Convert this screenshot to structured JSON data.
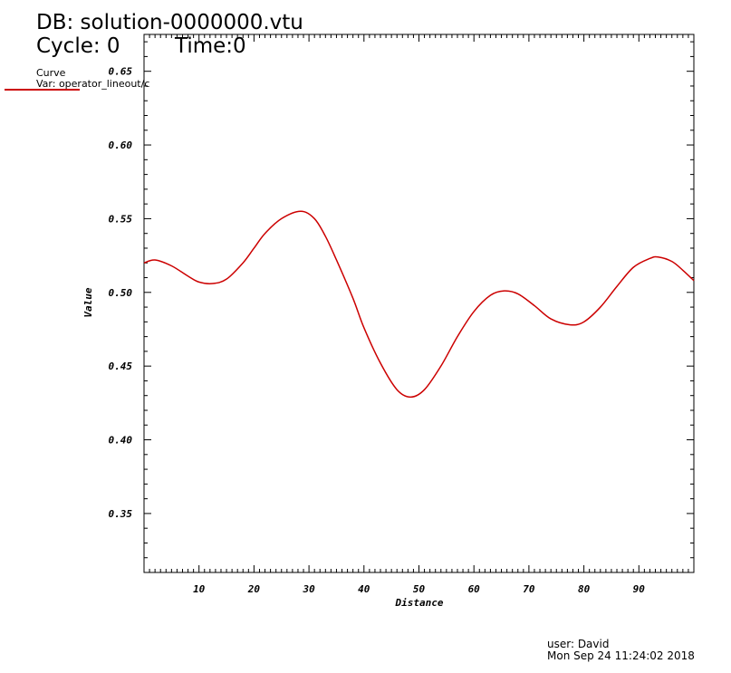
{
  "header": {
    "db_label": "DB: solution-0000000.vtu",
    "cycle_label": "Cycle: 0",
    "time_label": "Time:0"
  },
  "legend": {
    "title": "Curve",
    "var_label": "Var: operator_lineout/c",
    "line_color": "#cc0000"
  },
  "footer": {
    "user": "user: David",
    "date": "Mon Sep 24 11:24:02 2018"
  },
  "chart_data": {
    "type": "line",
    "xlabel": "Distance",
    "ylabel": "Value",
    "xlim": [
      0,
      100
    ],
    "ylim": [
      0.31,
      0.675
    ],
    "x_ticks": [
      10,
      20,
      30,
      40,
      50,
      60,
      70,
      80,
      90
    ],
    "y_ticks": [
      0.35,
      0.4,
      0.45,
      0.5,
      0.55,
      0.6,
      0.65
    ],
    "y_tick_labels": [
      "0.35",
      "0.40",
      "0.45",
      "0.50",
      "0.55",
      "0.60",
      "0.65"
    ],
    "grid": false,
    "series": [
      {
        "color": "#cc0000",
        "x": [
          0,
          2,
          5,
          8,
          10,
          12.5,
          15,
          18,
          20,
          22,
          25,
          28.5,
          31,
          33,
          35,
          38,
          40,
          43,
          46,
          48.5,
          51,
          54,
          57,
          60,
          63,
          65.5,
          68,
          71,
          74,
          77.5,
          80,
          83,
          86,
          89,
          92,
          93.5,
          96,
          98,
          100
        ],
        "y": [
          0.52,
          0.522,
          0.518,
          0.511,
          0.507,
          0.506,
          0.509,
          0.52,
          0.53,
          0.54,
          0.55,
          0.555,
          0.55,
          0.538,
          0.522,
          0.496,
          0.476,
          0.452,
          0.434,
          0.429,
          0.434,
          0.45,
          0.47,
          0.487,
          0.498,
          0.501,
          0.499,
          0.491,
          0.482,
          0.478,
          0.48,
          0.49,
          0.504,
          0.517,
          0.523,
          0.524,
          0.521,
          0.515,
          0.508
        ]
      }
    ]
  }
}
